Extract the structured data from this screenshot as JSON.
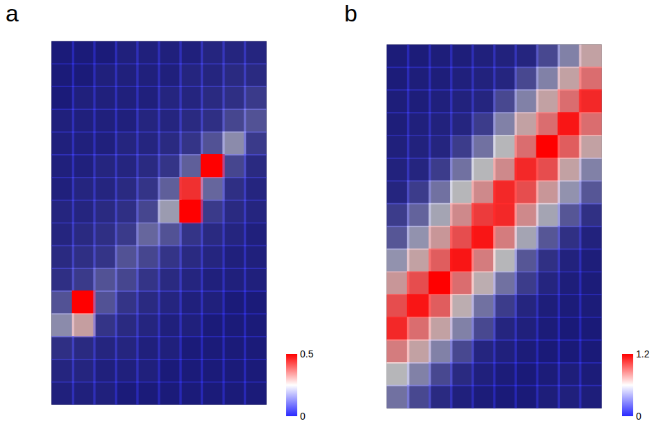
{
  "chart_data": [
    {
      "type": "heatmap",
      "title": "a",
      "tick_labels": false,
      "cells": [
        [
          0.02,
          0.02,
          0.02,
          0.03,
          0.03,
          0.03,
          0.03,
          0.04,
          0.04,
          0.04
        ],
        [
          0.02,
          0.02,
          0.03,
          0.03,
          0.03,
          0.03,
          0.04,
          0.04,
          0.05,
          0.05
        ],
        [
          0.02,
          0.03,
          0.03,
          0.03,
          0.03,
          0.04,
          0.04,
          0.05,
          0.06,
          0.08
        ],
        [
          0.03,
          0.03,
          0.03,
          0.03,
          0.04,
          0.04,
          0.05,
          0.06,
          0.1,
          0.12
        ],
        [
          0.03,
          0.03,
          0.03,
          0.04,
          0.04,
          0.05,
          0.07,
          0.12,
          0.2,
          0.08
        ],
        [
          0.03,
          0.03,
          0.04,
          0.04,
          0.05,
          0.07,
          0.14,
          0.5,
          0.1,
          0.05
        ],
        [
          0.03,
          0.04,
          0.04,
          0.05,
          0.07,
          0.14,
          0.45,
          0.15,
          0.06,
          0.04
        ],
        [
          0.04,
          0.04,
          0.05,
          0.06,
          0.1,
          0.22,
          0.5,
          0.08,
          0.05,
          0.04
        ],
        [
          0.04,
          0.05,
          0.06,
          0.08,
          0.15,
          0.12,
          0.07,
          0.05,
          0.04,
          0.03
        ],
        [
          0.05,
          0.06,
          0.07,
          0.12,
          0.1,
          0.07,
          0.05,
          0.04,
          0.03,
          0.03
        ],
        [
          0.06,
          0.08,
          0.12,
          0.1,
          0.07,
          0.05,
          0.04,
          0.03,
          0.03,
          0.03
        ],
        [
          0.12,
          0.5,
          0.12,
          0.07,
          0.05,
          0.04,
          0.03,
          0.03,
          0.02,
          0.02
        ],
        [
          0.2,
          0.3,
          0.07,
          0.05,
          0.04,
          0.03,
          0.03,
          0.02,
          0.02,
          0.02
        ],
        [
          0.06,
          0.05,
          0.04,
          0.04,
          0.03,
          0.03,
          0.02,
          0.02,
          0.02,
          0.02
        ],
        [
          0.04,
          0.04,
          0.03,
          0.03,
          0.03,
          0.02,
          0.02,
          0.02,
          0.02,
          0.02
        ],
        [
          0.03,
          0.03,
          0.03,
          0.02,
          0.02,
          0.02,
          0.02,
          0.02,
          0.02,
          0.02
        ]
      ],
      "colorbar": {
        "range": [
          0,
          0.5
        ],
        "ticks": [
          0,
          0.5
        ]
      }
    },
    {
      "type": "heatmap",
      "title": "b",
      "tick_labels": false,
      "cells": [
        [
          0.05,
          0.05,
          0.06,
          0.06,
          0.07,
          0.08,
          0.1,
          0.25,
          0.45,
          0.7
        ],
        [
          0.05,
          0.06,
          0.06,
          0.07,
          0.08,
          0.1,
          0.25,
          0.45,
          0.7,
          0.9
        ],
        [
          0.06,
          0.06,
          0.07,
          0.08,
          0.1,
          0.25,
          0.45,
          0.7,
          0.9,
          1.1
        ],
        [
          0.06,
          0.07,
          0.08,
          0.1,
          0.2,
          0.45,
          0.7,
          0.9,
          1.15,
          0.9
        ],
        [
          0.07,
          0.08,
          0.1,
          0.2,
          0.4,
          0.6,
          0.9,
          1.2,
          0.95,
          0.7
        ],
        [
          0.08,
          0.1,
          0.2,
          0.4,
          0.6,
          0.8,
          1.1,
          1.0,
          0.7,
          0.45
        ],
        [
          0.1,
          0.2,
          0.4,
          0.6,
          0.8,
          1.1,
          1.0,
          0.75,
          0.5,
          0.3
        ],
        [
          0.2,
          0.35,
          0.55,
          0.8,
          1.05,
          1.1,
          0.8,
          0.55,
          0.3,
          0.15
        ],
        [
          0.3,
          0.5,
          0.75,
          1.0,
          1.15,
          0.85,
          0.55,
          0.3,
          0.15,
          0.08
        ],
        [
          0.5,
          0.7,
          0.95,
          1.15,
          0.85,
          0.6,
          0.3,
          0.15,
          0.08,
          0.06
        ],
        [
          0.75,
          1.0,
          1.2,
          0.9,
          0.65,
          0.4,
          0.2,
          0.1,
          0.06,
          0.05
        ],
        [
          1.0,
          1.15,
          0.95,
          0.65,
          0.4,
          0.2,
          0.1,
          0.06,
          0.05,
          0.05
        ],
        [
          1.1,
          0.9,
          0.7,
          0.45,
          0.25,
          0.1,
          0.07,
          0.05,
          0.04,
          0.04
        ],
        [
          0.85,
          0.7,
          0.45,
          0.25,
          0.1,
          0.07,
          0.05,
          0.04,
          0.04,
          0.04
        ],
        [
          0.6,
          0.45,
          0.25,
          0.12,
          0.07,
          0.05,
          0.04,
          0.05,
          0.06,
          0.05
        ],
        [
          0.4,
          0.25,
          0.12,
          0.07,
          0.05,
          0.04,
          0.04,
          0.06,
          0.07,
          0.06
        ]
      ],
      "colorbar": {
        "range": [
          0,
          1.2
        ],
        "ticks": [
          0,
          1.2
        ]
      }
    }
  ]
}
